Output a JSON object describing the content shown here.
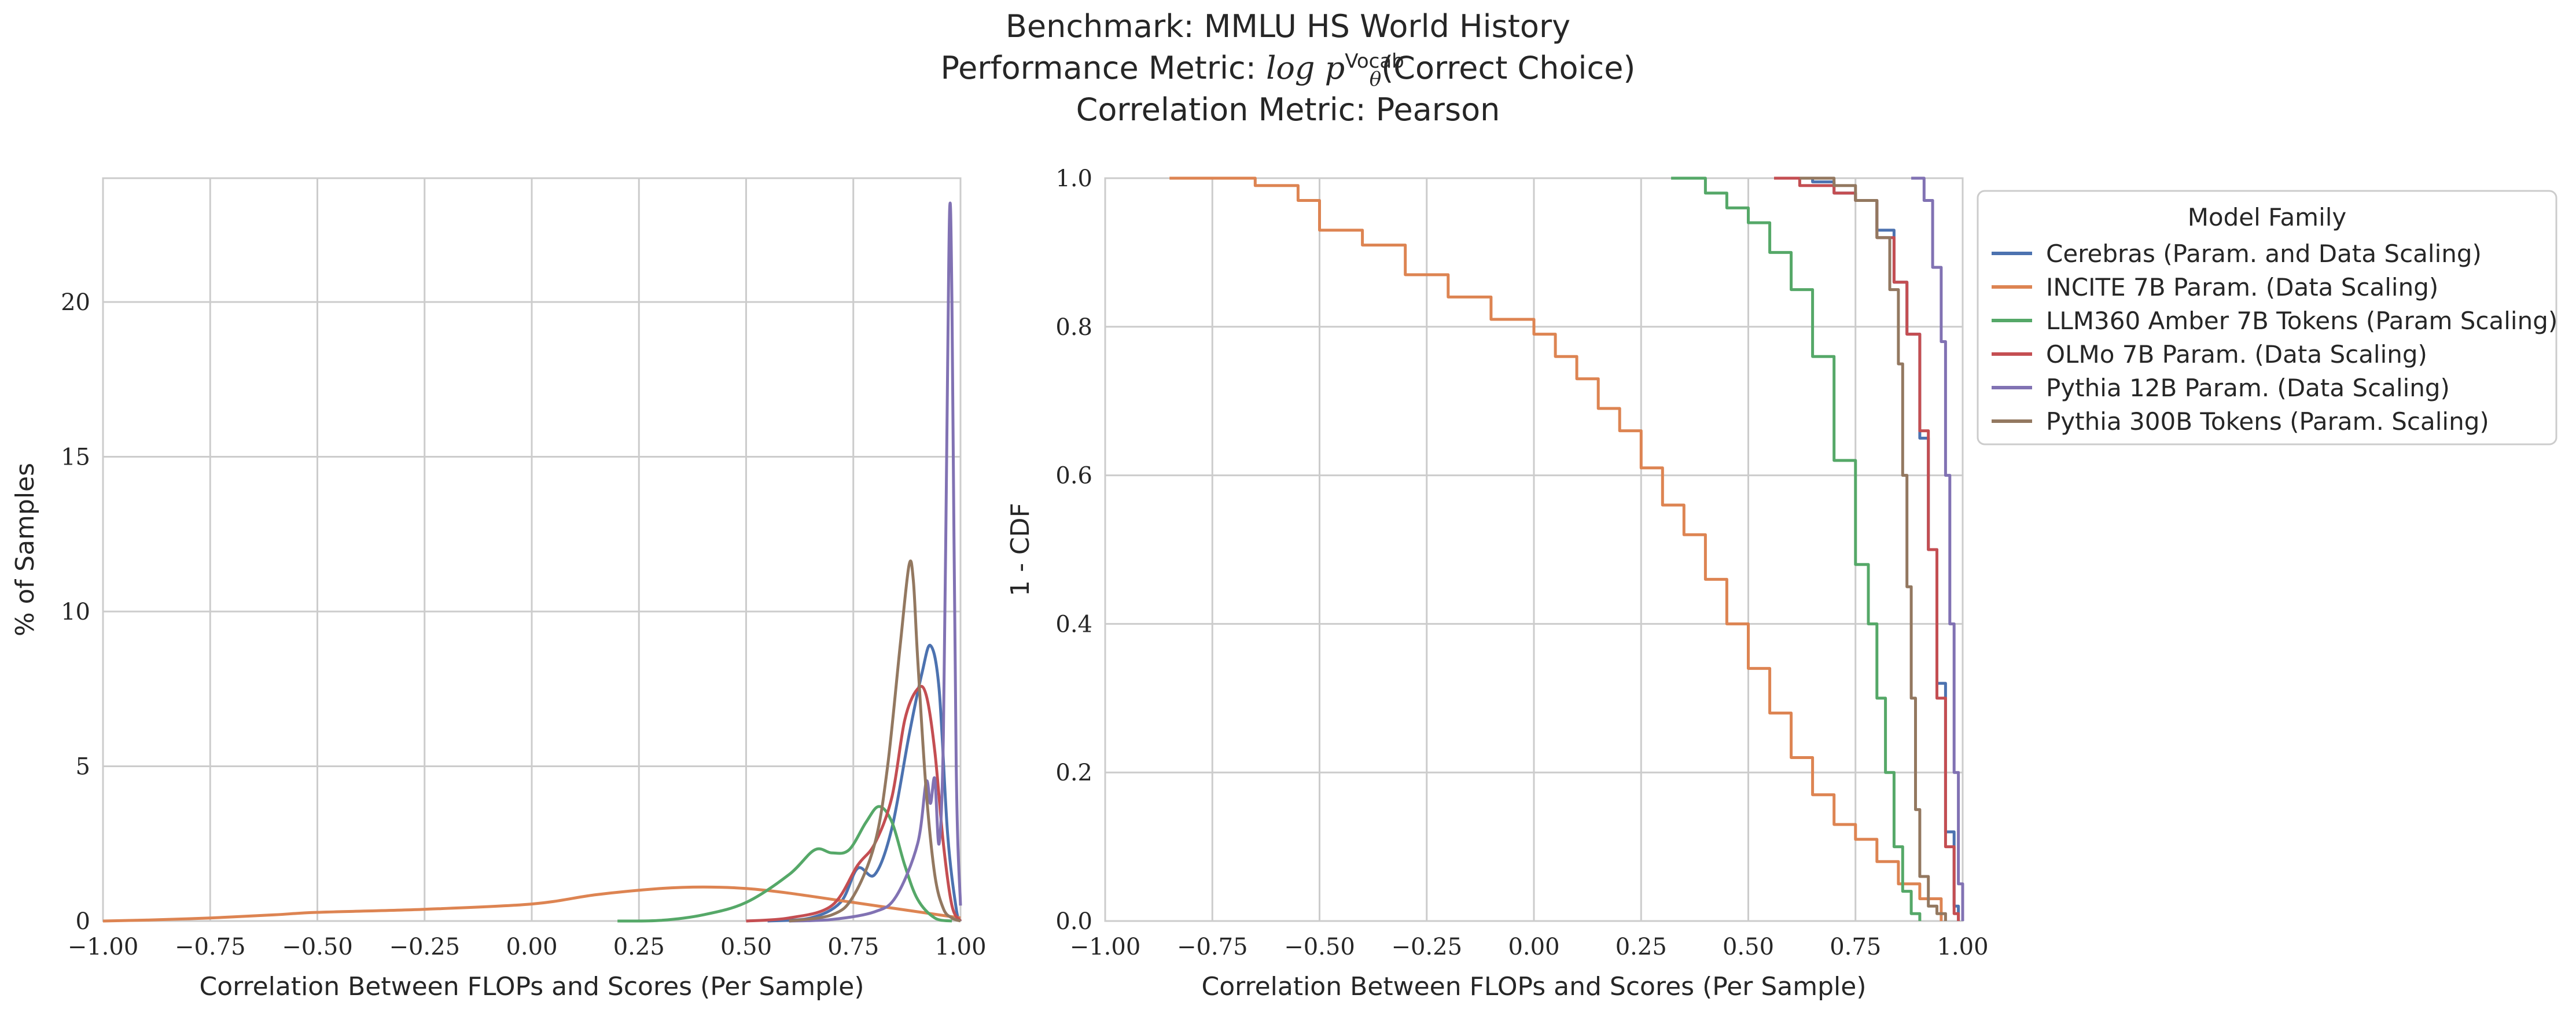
{
  "title": {
    "benchmark": "Benchmark: MMLU HS World History",
    "metric_prefix": "Performance Metric: ",
    "metric_math": "log p",
    "metric_sup": "Vocab",
    "metric_sub": "θ",
    "metric_suffix": "(Correct Choice)",
    "correlation": "Correlation Metric: Pearson"
  },
  "legend": {
    "title": "Model Family",
    "placement": "outside-right-top"
  },
  "colors": {
    "Cerebras (Param. and Data Scaling)": "#4c72b0",
    "INCITE 7B Param. (Data Scaling)": "#dd8452",
    "LLM360 Amber 7B Tokens (Param Scaling)": "#55a868",
    "OLMo 7B Param. (Data Scaling)": "#c44e52",
    "Pythia 12B Param. (Data Scaling)": "#8172b3",
    "Pythia 300B Tokens (Param. Scaling)": "#937860"
  },
  "chart_data": [
    {
      "type": "line",
      "subtype": "kde",
      "xlabel": "Correlation Between FLOPs and Scores (Per Sample)",
      "ylabel": "% of Samples",
      "xlim": [
        -1.0,
        1.0
      ],
      "ylim": [
        0,
        24
      ],
      "xticks": [
        "−1.00",
        "−0.75",
        "−0.50",
        "−0.25",
        "0.00",
        "0.25",
        "0.50",
        "0.75",
        "1.00"
      ],
      "yticks": [
        "0",
        "5",
        "10",
        "15",
        "20"
      ],
      "grid": true,
      "series": [
        {
          "name": "Cerebras (Param. and Data Scaling)",
          "x": [
            0.55,
            0.65,
            0.72,
            0.76,
            0.8,
            0.84,
            0.88,
            0.91,
            0.93,
            0.95,
            0.97,
            0.99,
            1.0
          ],
          "y": [
            0,
            0.1,
            0.6,
            1.7,
            1.5,
            3.0,
            6.0,
            8.0,
            8.9,
            7.5,
            2.8,
            0.4,
            0
          ]
        },
        {
          "name": "INCITE 7B Param. (Data Scaling)",
          "x": [
            -1.0,
            -0.9,
            -0.75,
            -0.6,
            -0.5,
            -0.25,
            0.0,
            0.15,
            0.3,
            0.4,
            0.5,
            0.6,
            0.75,
            0.9,
            1.0
          ],
          "y": [
            0,
            0.03,
            0.1,
            0.2,
            0.28,
            0.38,
            0.55,
            0.85,
            1.05,
            1.1,
            1.05,
            0.9,
            0.6,
            0.3,
            0.1
          ]
        },
        {
          "name": "LLM360 Amber 7B Tokens (Param Scaling)",
          "x": [
            0.2,
            0.3,
            0.4,
            0.5,
            0.6,
            0.66,
            0.7,
            0.74,
            0.78,
            0.81,
            0.84,
            0.87,
            0.9,
            0.94,
            0.98
          ],
          "y": [
            0,
            0.02,
            0.2,
            0.6,
            1.5,
            2.3,
            2.2,
            2.3,
            3.2,
            3.7,
            3.2,
            1.8,
            0.7,
            0.1,
            0
          ]
        },
        {
          "name": "OLMo 7B Param. (Data Scaling)",
          "x": [
            0.5,
            0.6,
            0.7,
            0.76,
            0.8,
            0.84,
            0.87,
            0.9,
            0.92,
            0.94,
            0.96,
            0.98,
            1.0
          ],
          "y": [
            0,
            0.1,
            0.5,
            1.8,
            2.5,
            4.0,
            6.5,
            7.5,
            7.3,
            5.5,
            2.5,
            0.5,
            0
          ]
        },
        {
          "name": "Pythia 12B Param. (Data Scaling)",
          "x": [
            0.6,
            0.7,
            0.8,
            0.85,
            0.9,
            0.92,
            0.93,
            0.94,
            0.95,
            0.96,
            0.97,
            0.975,
            0.98,
            0.99,
            1.0
          ],
          "y": [
            0,
            0.05,
            0.3,
            0.8,
            2.5,
            4.5,
            3.8,
            4.6,
            2.5,
            6.0,
            18.0,
            23.1,
            20.0,
            5.0,
            0.5
          ]
        },
        {
          "name": "Pythia 300B Tokens (Param. Scaling)",
          "x": [
            0.6,
            0.7,
            0.75,
            0.8,
            0.83,
            0.86,
            0.88,
            0.89,
            0.9,
            0.92,
            0.94,
            0.96,
            0.98,
            1.0
          ],
          "y": [
            0,
            0.2,
            0.8,
            2.5,
            5.0,
            9.0,
            11.5,
            11.0,
            8.5,
            4.2,
            1.5,
            0.4,
            0.1,
            0
          ]
        }
      ]
    },
    {
      "type": "line",
      "subtype": "survival-step",
      "xlabel": "Correlation Between FLOPs and Scores (Per Sample)",
      "ylabel": "1 - CDF",
      "xlim": [
        -1.0,
        1.0
      ],
      "ylim": [
        0,
        1.0
      ],
      "xticks": [
        "−1.00",
        "−0.75",
        "−0.50",
        "−0.25",
        "0.00",
        "0.25",
        "0.50",
        "0.75",
        "1.00"
      ],
      "yticks": [
        "0.0",
        "0.2",
        "0.4",
        "0.6",
        "0.8",
        "1.0"
      ],
      "grid": true,
      "series": [
        {
          "name": "Cerebras (Param. and Data Scaling)",
          "x": [
            0.58,
            0.65,
            0.7,
            0.75,
            0.8,
            0.84,
            0.87,
            0.9,
            0.92,
            0.94,
            0.96,
            0.98,
            0.99
          ],
          "y": [
            1.0,
            0.995,
            0.98,
            0.97,
            0.93,
            0.86,
            0.79,
            0.65,
            0.5,
            0.32,
            0.12,
            0.02,
            0.0
          ]
        },
        {
          "name": "INCITE 7B Param. (Data Scaling)",
          "x": [
            -0.85,
            -0.65,
            -0.55,
            -0.5,
            -0.4,
            -0.3,
            -0.2,
            -0.1,
            0.0,
            0.05,
            0.1,
            0.15,
            0.2,
            0.25,
            0.3,
            0.35,
            0.4,
            0.45,
            0.5,
            0.55,
            0.6,
            0.65,
            0.7,
            0.75,
            0.8,
            0.85,
            0.9,
            0.95
          ],
          "y": [
            1.0,
            0.99,
            0.97,
            0.93,
            0.91,
            0.87,
            0.84,
            0.81,
            0.79,
            0.76,
            0.73,
            0.69,
            0.66,
            0.61,
            0.56,
            0.52,
            0.46,
            0.4,
            0.34,
            0.28,
            0.22,
            0.17,
            0.13,
            0.11,
            0.08,
            0.05,
            0.03,
            0.0
          ]
        },
        {
          "name": "LLM360 Amber 7B Tokens (Param Scaling)",
          "x": [
            0.32,
            0.4,
            0.45,
            0.5,
            0.55,
            0.6,
            0.65,
            0.7,
            0.75,
            0.78,
            0.8,
            0.82,
            0.84,
            0.86,
            0.88,
            0.9
          ],
          "y": [
            1.0,
            0.98,
            0.96,
            0.94,
            0.9,
            0.85,
            0.76,
            0.62,
            0.48,
            0.4,
            0.3,
            0.2,
            0.1,
            0.04,
            0.01,
            0.0
          ]
        },
        {
          "name": "OLMo 7B Param. (Data Scaling)",
          "x": [
            0.56,
            0.62,
            0.7,
            0.75,
            0.8,
            0.84,
            0.87,
            0.9,
            0.92,
            0.94,
            0.96,
            0.98,
            0.99
          ],
          "y": [
            1.0,
            0.99,
            0.98,
            0.97,
            0.92,
            0.86,
            0.79,
            0.66,
            0.5,
            0.3,
            0.1,
            0.01,
            0.0
          ]
        },
        {
          "name": "Pythia 12B Param. (Data Scaling)",
          "x": [
            0.88,
            0.91,
            0.93,
            0.95,
            0.96,
            0.97,
            0.98,
            0.99,
            1.0
          ],
          "y": [
            1.0,
            0.97,
            0.88,
            0.78,
            0.6,
            0.4,
            0.2,
            0.05,
            0.0
          ]
        },
        {
          "name": "Pythia 300B Tokens (Param. Scaling)",
          "x": [
            0.62,
            0.7,
            0.75,
            0.8,
            0.83,
            0.85,
            0.86,
            0.87,
            0.88,
            0.89,
            0.9,
            0.92,
            0.94,
            0.96
          ],
          "y": [
            1.0,
            0.99,
            0.97,
            0.92,
            0.85,
            0.75,
            0.6,
            0.45,
            0.3,
            0.15,
            0.06,
            0.02,
            0.01,
            0.0
          ]
        }
      ]
    }
  ]
}
